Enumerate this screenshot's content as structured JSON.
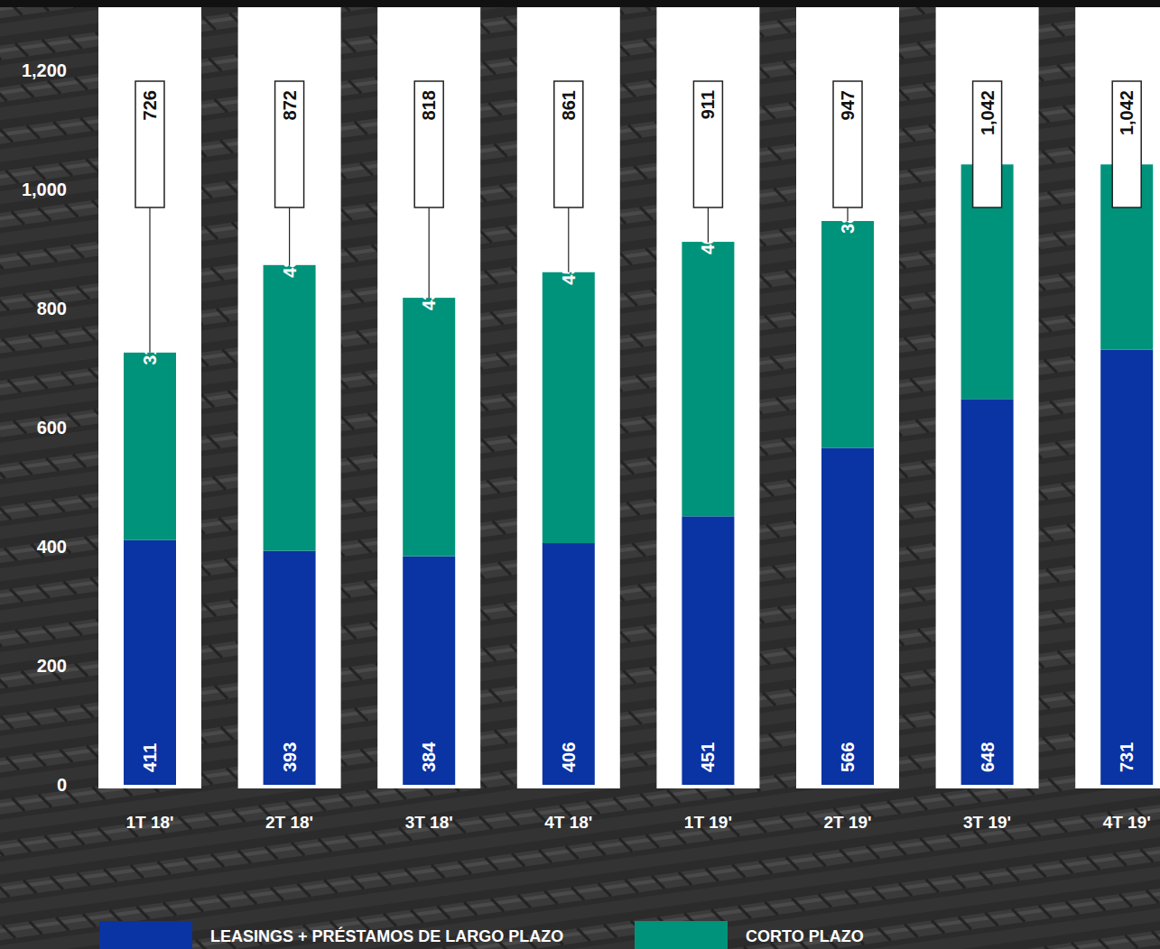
{
  "chart_data": {
    "type": "bar",
    "stacked": true,
    "data_labels": true,
    "categories": [
      "1T 18'",
      "2T 18'",
      "3T 18'",
      "4T 18'",
      "1T 19'",
      "2T 19'",
      "3T 19'",
      "4T 19'"
    ],
    "series": [
      {
        "name": "LEASINGS + PRÉSTAMOS DE LARGO PLAZO",
        "color": "#0a33a3",
        "values": [
          411,
          393,
          384,
          406,
          451,
          566,
          648,
          731
        ]
      },
      {
        "name": "CORTO PLAZO",
        "color": "#00937b",
        "values": [
          315,
          480,
          434,
          455,
          461,
          381,
          394,
          311
        ]
      }
    ],
    "totals": [
      726,
      872,
      818,
      861,
      911,
      947,
      1042,
      1042
    ],
    "total_labels": [
      "726",
      "872",
      "818",
      "861",
      "911",
      "947",
      "1,042",
      "1,042"
    ],
    "ylim": [
      0,
      1200
    ],
    "yticks": [
      0,
      200,
      400,
      600,
      800,
      {
        "value": 1000,
        "label": "1,000"
      },
      {
        "value": 1200,
        "label": "1,200"
      }
    ],
    "grid": false,
    "legend": "bottom"
  }
}
